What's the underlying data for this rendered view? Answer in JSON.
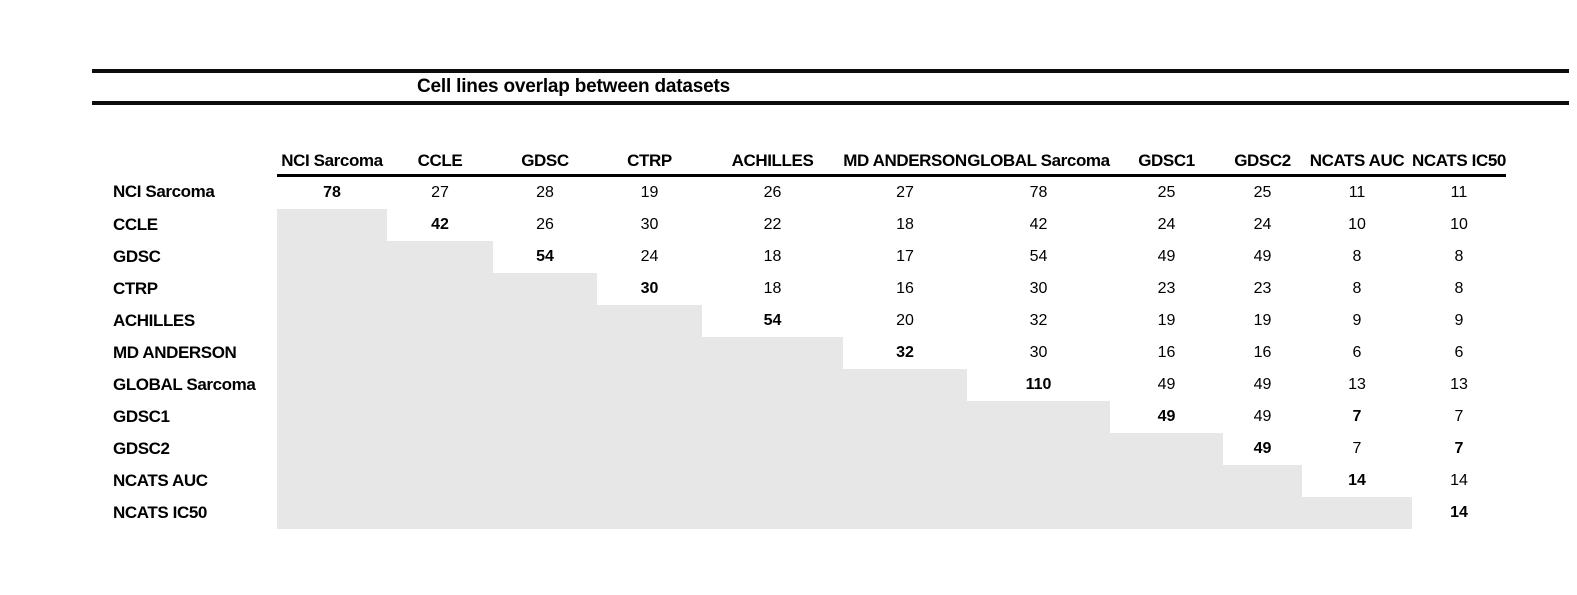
{
  "title": "Cell lines overlap between datasets",
  "colors": {
    "shaded_cell": "#e7e7e7",
    "rule": "#0d0d0d",
    "text": "#000000"
  },
  "table": {
    "corner_label": "",
    "columns": [
      "NCI Sarcoma",
      "CCLE",
      "GDSC",
      "CTRP",
      "ACHILLES",
      "MD ANDERSON",
      "GLOBAL Sarcoma",
      "GDSC1",
      "GDSC2",
      "NCATS AUC",
      "NCATS IC50"
    ],
    "rows": [
      {
        "label": "NCI Sarcoma",
        "values": [
          78,
          27,
          28,
          19,
          26,
          27,
          78,
          25,
          25,
          11,
          11
        ],
        "bold_cols": [
          1
        ]
      },
      {
        "label": "CCLE",
        "values": [
          null,
          42,
          26,
          30,
          22,
          18,
          42,
          24,
          24,
          10,
          10
        ],
        "bold_cols": [
          2
        ]
      },
      {
        "label": "GDSC",
        "values": [
          null,
          null,
          54,
          24,
          18,
          17,
          54,
          49,
          49,
          8,
          8
        ],
        "bold_cols": [
          3
        ]
      },
      {
        "label": "CTRP",
        "values": [
          null,
          null,
          null,
          30,
          18,
          16,
          30,
          23,
          23,
          8,
          8
        ],
        "bold_cols": [
          4
        ]
      },
      {
        "label": "ACHILLES",
        "values": [
          null,
          null,
          null,
          null,
          54,
          20,
          32,
          19,
          19,
          9,
          9
        ],
        "bold_cols": [
          5
        ]
      },
      {
        "label": "MD ANDERSON",
        "values": [
          null,
          null,
          null,
          null,
          null,
          32,
          30,
          16,
          16,
          6,
          6
        ],
        "bold_cols": [
          6
        ]
      },
      {
        "label": "GLOBAL Sarcoma",
        "values": [
          null,
          null,
          null,
          null,
          null,
          null,
          110,
          49,
          49,
          13,
          13
        ],
        "bold_cols": [
          7
        ]
      },
      {
        "label": "GDSC1",
        "values": [
          null,
          null,
          null,
          null,
          null,
          null,
          null,
          49,
          49,
          7,
          7
        ],
        "bold_cols": [
          8,
          10
        ]
      },
      {
        "label": "GDSC2",
        "values": [
          null,
          null,
          null,
          null,
          null,
          null,
          null,
          null,
          49,
          7,
          7
        ],
        "bold_cols": [
          9,
          11
        ]
      },
      {
        "label": "NCATS AUC",
        "values": [
          null,
          null,
          null,
          null,
          null,
          null,
          null,
          null,
          null,
          14,
          14
        ],
        "bold_cols": [
          10
        ]
      },
      {
        "label": "NCATS IC50",
        "values": [
          null,
          null,
          null,
          null,
          null,
          null,
          null,
          null,
          null,
          null,
          14
        ],
        "bold_cols": [
          11
        ]
      }
    ]
  }
}
